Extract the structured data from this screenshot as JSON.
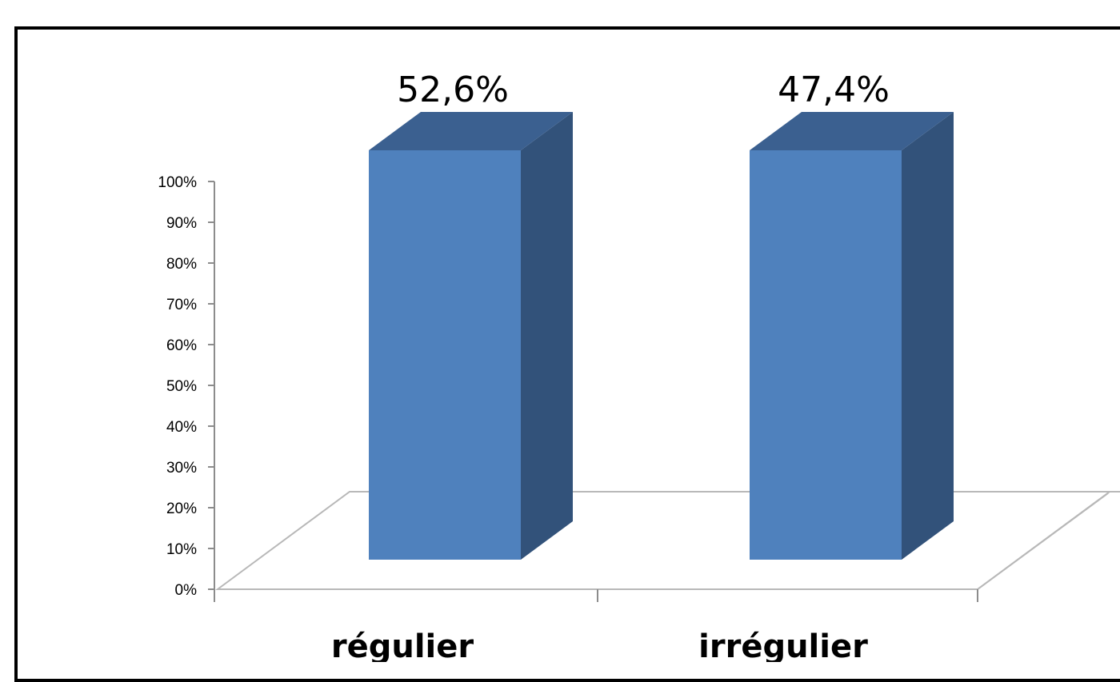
{
  "chart_data": {
    "type": "bar",
    "categories": [
      "régulier",
      "irrégulier"
    ],
    "values": [
      52.6,
      47.4
    ],
    "data_labels": [
      "52,6%",
      "47,4%"
    ],
    "ylim": [
      0,
      100
    ],
    "yticks": [
      "0%",
      "10%",
      "20%",
      "30%",
      "40%",
      "50%",
      "60%",
      "70%",
      "80%",
      "90%",
      "100%"
    ],
    "title": "",
    "xlabel": "",
    "ylabel": "",
    "grid": false,
    "style": "3d-column",
    "colors": {
      "front": "#4f81bd",
      "side": "#32527a",
      "top": "#3b6090",
      "floor": "#b8b8b8"
    }
  }
}
